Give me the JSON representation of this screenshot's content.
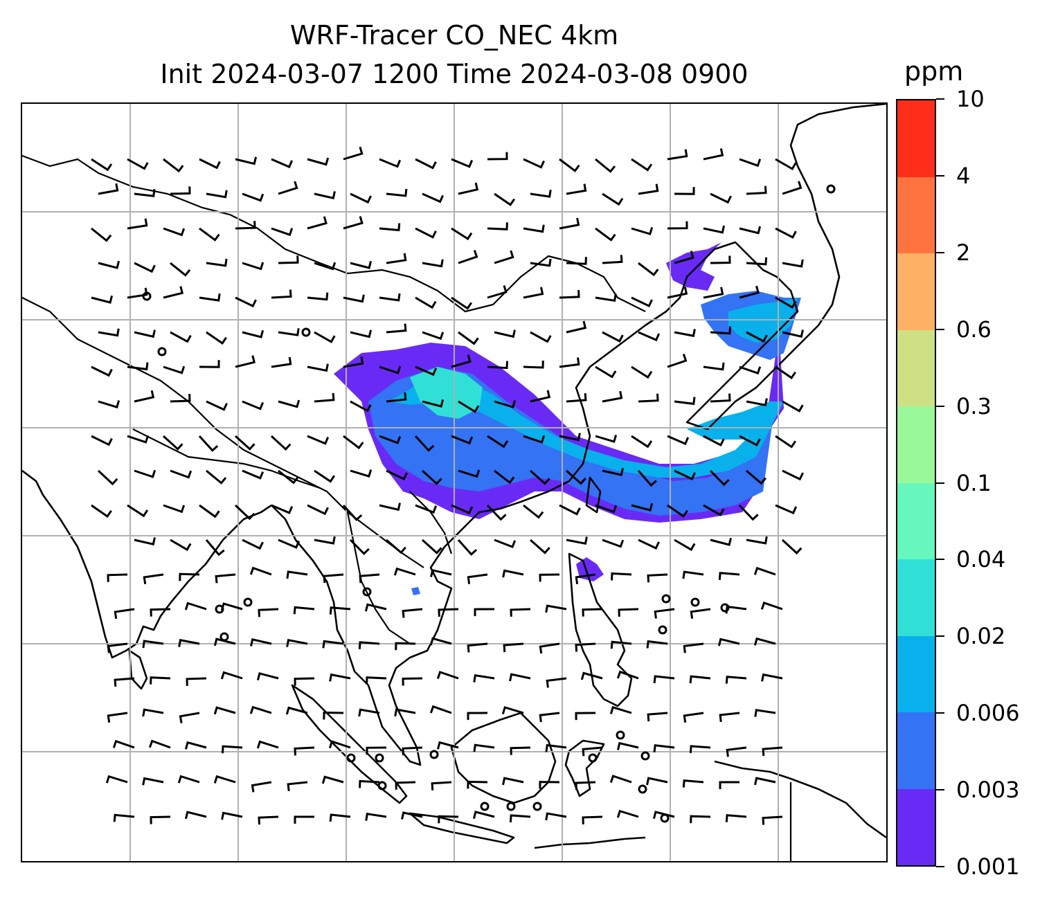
{
  "title": {
    "line1": "WRF-Tracer CO_NEC 4km",
    "line2": "Init 2024-03-07 1200 Time 2024-03-08 0900"
  },
  "map": {
    "field": "CO_NEC tracer concentration",
    "projection_grid": "lat/lon gridlines, 7 columns x 7 rows",
    "overlays": [
      "coastlines",
      "country-borders",
      "wind-barbs"
    ],
    "gridline_color": "#b0b0b0"
  },
  "colorbar": {
    "unit": "ppm",
    "levels": [
      "0.001",
      "0.003",
      "0.006",
      "0.02",
      "0.04",
      "0.1",
      "0.3",
      "0.6",
      "2",
      "4",
      "10"
    ],
    "colors": [
      "#6a2af5",
      "#3373f4",
      "#08b1eb",
      "#30e0d6",
      "#66f7bc",
      "#99f99a",
      "#cde083",
      "#feb165",
      "#fe7340",
      "#fe2e1a"
    ],
    "colormap": "rainbow"
  }
}
